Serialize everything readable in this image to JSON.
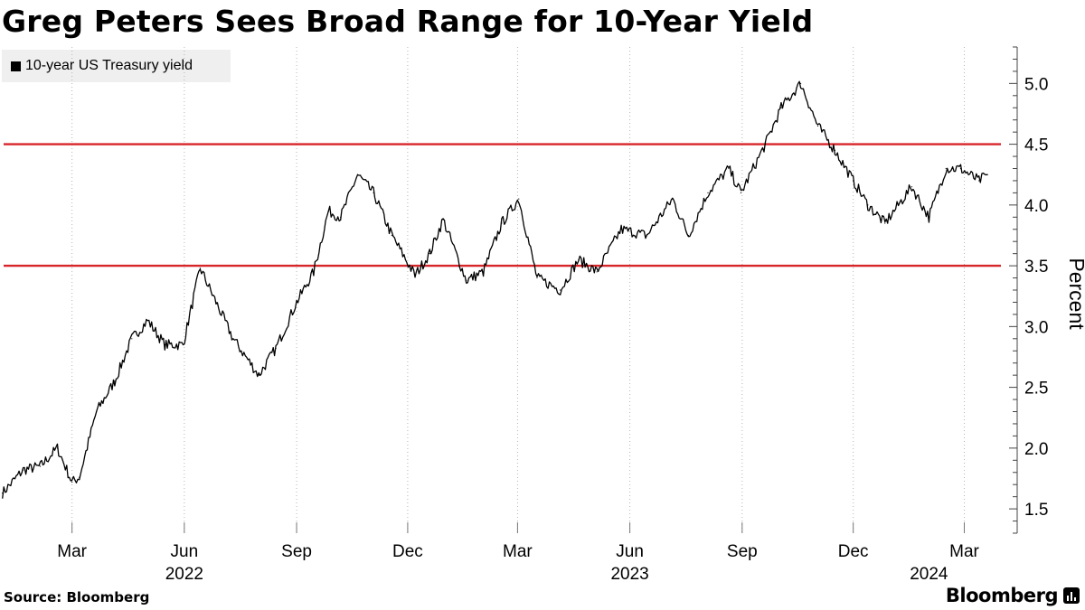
{
  "chart_data": {
    "type": "line",
    "title": "Greg Peters Sees Broad Range for 10-Year Yield",
    "series": [
      {
        "name": "10-year US Treasury yield",
        "x": [
          "2022-01-03",
          "2022-01-20",
          "2022-02-03",
          "2022-02-17",
          "2022-03-01",
          "2022-03-07",
          "2022-03-21",
          "2022-04-05",
          "2022-04-19",
          "2022-05-02",
          "2022-05-16",
          "2022-05-31",
          "2022-06-14",
          "2022-06-27",
          "2022-07-11",
          "2022-08-01",
          "2022-08-15",
          "2022-09-01",
          "2022-09-15",
          "2022-09-27",
          "2022-10-07",
          "2022-10-21",
          "2022-11-03",
          "2022-11-18",
          "2022-12-07",
          "2022-12-19",
          "2022-12-30",
          "2023-01-18",
          "2023-02-01",
          "2023-02-16",
          "2023-03-02",
          "2023-03-17",
          "2023-04-05",
          "2023-04-20",
          "2023-05-05",
          "2023-05-25",
          "2023-06-15",
          "2023-07-06",
          "2023-07-19",
          "2023-08-04",
          "2023-08-21",
          "2023-08-31",
          "2023-09-20",
          "2023-10-03",
          "2023-10-19",
          "2023-11-02",
          "2023-11-16",
          "2023-12-01",
          "2023-12-13",
          "2023-12-27",
          "2024-01-18",
          "2024-02-01",
          "2024-02-15",
          "2024-02-27",
          "2024-03-13",
          "2024-03-20"
        ],
        "values": [
          1.63,
          1.82,
          1.85,
          2.0,
          1.72,
          1.76,
          2.3,
          2.55,
          2.9,
          3.05,
          2.85,
          2.85,
          3.48,
          3.2,
          2.9,
          2.6,
          2.82,
          3.2,
          3.45,
          3.95,
          3.9,
          4.25,
          4.1,
          3.75,
          3.42,
          3.6,
          3.88,
          3.38,
          3.45,
          3.85,
          4.05,
          3.4,
          3.3,
          3.55,
          3.45,
          3.8,
          3.75,
          4.05,
          3.75,
          4.1,
          4.3,
          4.1,
          4.5,
          4.8,
          5.0,
          4.65,
          4.45,
          4.2,
          4.0,
          3.85,
          4.15,
          3.9,
          4.3,
          4.3,
          4.2,
          4.25
        ]
      }
    ],
    "yaxis": {
      "label": "Percent",
      "ylim": [
        1.3,
        5.3
      ],
      "ticks": [
        "1.5",
        "2.0",
        "2.5",
        "3.0",
        "3.5",
        "4.0",
        "4.5",
        "5.0"
      ],
      "position": "right"
    },
    "xaxis": {
      "range": [
        "2022-01-01",
        "2024-03-31"
      ],
      "months": [
        {
          "label": "Mar",
          "date": "2022-03-01"
        },
        {
          "label": "Jun",
          "date": "2022-06-01"
        },
        {
          "label": "Sep",
          "date": "2022-09-01"
        },
        {
          "label": "Dec",
          "date": "2022-12-01"
        },
        {
          "label": "Mar",
          "date": "2023-03-01"
        },
        {
          "label": "Jun",
          "date": "2023-06-01"
        },
        {
          "label": "Sep",
          "date": "2023-09-01"
        },
        {
          "label": "Dec",
          "date": "2023-12-01"
        },
        {
          "label": "Mar",
          "date": "2024-03-01"
        }
      ],
      "years": [
        {
          "label": "2022",
          "date": "2022-06-01"
        },
        {
          "label": "2023",
          "date": "2023-06-01"
        },
        {
          "label": "2024",
          "date": "2024-02-01"
        }
      ]
    },
    "reference_lines": [
      {
        "value": 4.5,
        "color": "#d7262a"
      },
      {
        "value": 3.5,
        "color": "#d7262a"
      }
    ],
    "grid": "vertical-dotted",
    "legend": "top-left"
  },
  "legend": {
    "label": "10-year US Treasury yield"
  },
  "footer": {
    "source": "Source: Bloomberg",
    "logo": "Bloomberg"
  },
  "colors": {
    "series": "#000000",
    "reference": "#d7262a",
    "legend_bg": "#efefef"
  }
}
